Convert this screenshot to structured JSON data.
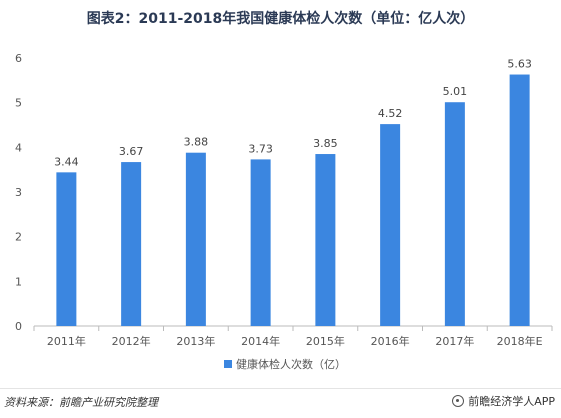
{
  "chart_data": {
    "type": "bar",
    "title": "图表2：2011-2018年我国健康体检人次数（单位：亿人次）",
    "categories": [
      "2011年",
      "2012年",
      "2013年",
      "2014年",
      "2015年",
      "2016年",
      "2017年",
      "2018年E"
    ],
    "series": [
      {
        "name": "健康体检人次数（亿）",
        "values": [
          3.44,
          3.67,
          3.88,
          3.73,
          3.85,
          4.52,
          5.01,
          5.63
        ]
      }
    ],
    "ylim": [
      0,
      6
    ],
    "yticks": [
      0,
      1,
      2,
      3,
      4,
      5,
      6
    ],
    "grid": false,
    "legend": "bottom-center",
    "bar_color": "#3b86e0"
  },
  "footer": {
    "source": "资料来源：前瞻产业研究院整理",
    "brand": "前瞻经济学人APP"
  }
}
